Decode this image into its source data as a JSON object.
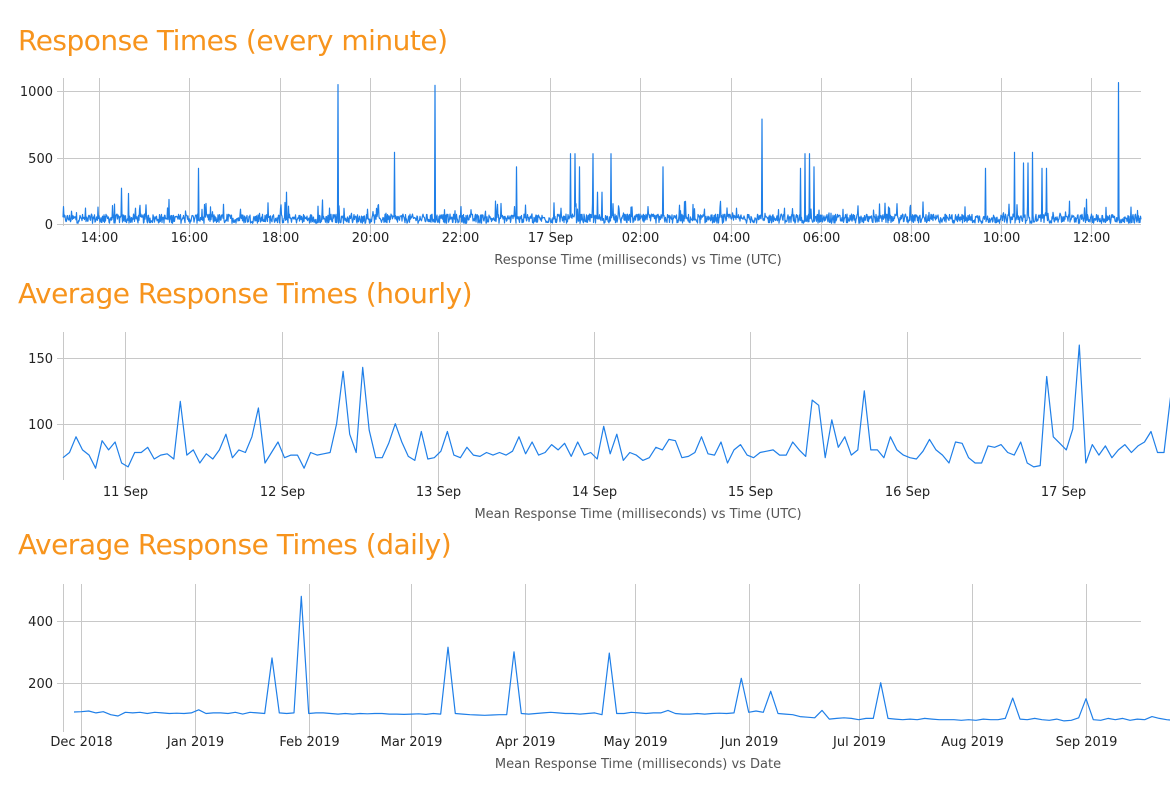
{
  "colors": {
    "title": "#f7941d",
    "series": "#1f7fe8",
    "grid": "#c8c8c8"
  },
  "charts": [
    {
      "title": "Response Times (every minute)",
      "chart_data": {
        "type": "line",
        "title": "Response Times (every minute)",
        "xlabel": "Response Time (milliseconds) vs Time (UTC)",
        "ylabel": "",
        "xlim": [
          13.2,
          37.1
        ],
        "ylim": [
          -15,
          1100
        ],
        "grid": true,
        "x_ticks": [
          {
            "value": 14,
            "label": "14:00"
          },
          {
            "value": 16,
            "label": "16:00"
          },
          {
            "value": 18,
            "label": "18:00"
          },
          {
            "value": 20,
            "label": "20:00"
          },
          {
            "value": 22,
            "label": "22:00"
          },
          {
            "value": 24,
            "label": "17 Sep"
          },
          {
            "value": 26,
            "label": "02:00"
          },
          {
            "value": 28,
            "label": "04:00"
          },
          {
            "value": 30,
            "label": "06:00"
          },
          {
            "value": 32,
            "label": "08:00"
          },
          {
            "value": 34,
            "label": "10:00"
          },
          {
            "value": 36,
            "label": "12:00"
          }
        ],
        "y_ticks": [
          0,
          500,
          1000
        ],
        "spikes": [
          [
            14.5,
            270
          ],
          [
            14.65,
            230
          ],
          [
            16.2,
            420
          ],
          [
            18.15,
            240
          ],
          [
            19.3,
            1050
          ],
          [
            20.55,
            540
          ],
          [
            21.45,
            1045
          ],
          [
            23.25,
            430
          ],
          [
            24.45,
            530
          ],
          [
            24.55,
            530
          ],
          [
            24.65,
            430
          ],
          [
            24.95,
            530
          ],
          [
            25.05,
            240
          ],
          [
            25.15,
            240
          ],
          [
            25.35,
            530
          ],
          [
            26.5,
            430
          ],
          [
            28.7,
            790
          ],
          [
            29.55,
            420
          ],
          [
            29.65,
            530
          ],
          [
            29.75,
            530
          ],
          [
            29.85,
            430
          ],
          [
            33.65,
            420
          ],
          [
            34.3,
            540
          ],
          [
            34.5,
            460
          ],
          [
            34.6,
            460
          ],
          [
            34.7,
            540
          ],
          [
            34.9,
            420
          ],
          [
            35.0,
            420
          ],
          [
            36.6,
            1065
          ]
        ],
        "baseline_ms": 40
      }
    },
    {
      "title": "Average Response Times (hourly)",
      "chart_data": {
        "type": "line",
        "title": "Average Response Times (hourly)",
        "xlabel": "Mean Response Time (milliseconds) vs Time (UTC)",
        "ylabel": "",
        "xlim": [
          10.6,
          17.5
        ],
        "ylim": [
          57,
          170
        ],
        "grid": true,
        "x_ticks": [
          {
            "value": 11,
            "label": "11 Sep"
          },
          {
            "value": 12,
            "label": "12 Sep"
          },
          {
            "value": 13,
            "label": "13 Sep"
          },
          {
            "value": 14,
            "label": "14 Sep"
          },
          {
            "value": 15,
            "label": "15 Sep"
          },
          {
            "value": 16,
            "label": "16 Sep"
          },
          {
            "value": 17,
            "label": "17 Sep"
          }
        ],
        "y_ticks": [
          100,
          150
        ],
        "x_start": 10.6,
        "x_step": 0.0417,
        "values": [
          74,
          78,
          90,
          80,
          76,
          66,
          87,
          80,
          86,
          70,
          67,
          78,
          78,
          82,
          73,
          76,
          77,
          73,
          117,
          76,
          80,
          70,
          77,
          73,
          80,
          92,
          74,
          80,
          78,
          90,
          112,
          70,
          78,
          86,
          74,
          76,
          76,
          66,
          78,
          76,
          77,
          78,
          100,
          140,
          92,
          78,
          143,
          95,
          74,
          74,
          85,
          100,
          86,
          75,
          72,
          94,
          73,
          74,
          79,
          94,
          76,
          74,
          82,
          76,
          75,
          78,
          76,
          78,
          76,
          79,
          90,
          77,
          86,
          76,
          78,
          84,
          80,
          85,
          75,
          86,
          76,
          78,
          73,
          98,
          77,
          92,
          72,
          78,
          76,
          72,
          74,
          82,
          80,
          88,
          87,
          74,
          75,
          78,
          90,
          77,
          76,
          86,
          70,
          80,
          84,
          76,
          74,
          78,
          79,
          80,
          76,
          76,
          86,
          80,
          75,
          118,
          114,
          74,
          103,
          82,
          90,
          76,
          80,
          125,
          80,
          80,
          74,
          90,
          80,
          76,
          74,
          73,
          79,
          88,
          80,
          76,
          70,
          86,
          85,
          74,
          70,
          70,
          83,
          82,
          84,
          78,
          76,
          86,
          70,
          67,
          68,
          136,
          90,
          85,
          80,
          96,
          160,
          70,
          84,
          76,
          83,
          74,
          80,
          84,
          78,
          83,
          86,
          94,
          78,
          78,
          120,
          84,
          85,
          78,
          85,
          148,
          74,
          86,
          78,
          76,
          153,
          80,
          94
        ]
      }
    },
    {
      "title": "Average Response Times (daily)",
      "chart_data": {
        "type": "line",
        "title": "Average Response Times (daily)",
        "xlabel": "Mean Response Time (milliseconds) vs Date",
        "ylabel": "",
        "xlim": [
          -5,
          289
        ],
        "ylim": [
          40,
          520
        ],
        "grid": true,
        "x_ticks": [
          {
            "value": 0,
            "label": "Dec 2018"
          },
          {
            "value": 31,
            "label": "Jan 2019"
          },
          {
            "value": 62,
            "label": "Feb 2019"
          },
          {
            "value": 90,
            "label": "Mar 2019"
          },
          {
            "value": 121,
            "label": "Apr 2019"
          },
          {
            "value": 151,
            "label": "May 2019"
          },
          {
            "value": 182,
            "label": "Jun 2019"
          },
          {
            "value": 212,
            "label": "Jul 2019"
          },
          {
            "value": 243,
            "label": "Aug 2019"
          },
          {
            "value": 274,
            "label": "Sep 2019"
          }
        ],
        "y_ticks": [
          200,
          400
        ],
        "x_start": -2,
        "x_step": 2,
        "values": [
          105,
          106,
          108,
          102,
          106,
          96,
          92,
          104,
          102,
          104,
          100,
          104,
          102,
          100,
          101,
          100,
          102,
          112,
          100,
          102,
          102,
          100,
          104,
          98,
          104,
          102,
          100,
          280,
          102,
          100,
          102,
          480,
          100,
          102,
          102,
          100,
          98,
          100,
          98,
          100,
          99,
          100,
          100,
          98,
          98,
          97,
          98,
          99,
          97,
          100,
          98,
          315,
          100,
          98,
          96,
          95,
          94,
          95,
          96,
          96,
          300,
          100,
          98,
          100,
          102,
          104,
          102,
          100,
          100,
          98,
          100,
          102,
          96,
          296,
          100,
          100,
          104,
          102,
          100,
          102,
          102,
          110,
          100,
          98,
          98,
          100,
          98,
          100,
          101,
          100,
          102,
          214,
          104,
          108,
          104,
          172,
          100,
          98,
          96,
          90,
          88,
          86,
          110,
          82,
          84,
          86,
          84,
          80,
          84,
          84,
          200,
          84,
          82,
          80,
          82,
          80,
          84,
          82,
          80,
          80,
          80,
          78,
          80,
          78,
          82,
          80,
          80,
          84,
          150,
          82,
          80,
          84,
          80,
          78,
          82,
          76,
          78,
          86,
          148,
          80,
          78,
          84,
          80,
          84,
          78,
          82,
          80,
          90,
          84,
          80,
          78,
          82,
          80,
          196,
          82,
          84,
          84,
          86,
          82,
          80,
          84,
          86
        ]
      }
    }
  ]
}
